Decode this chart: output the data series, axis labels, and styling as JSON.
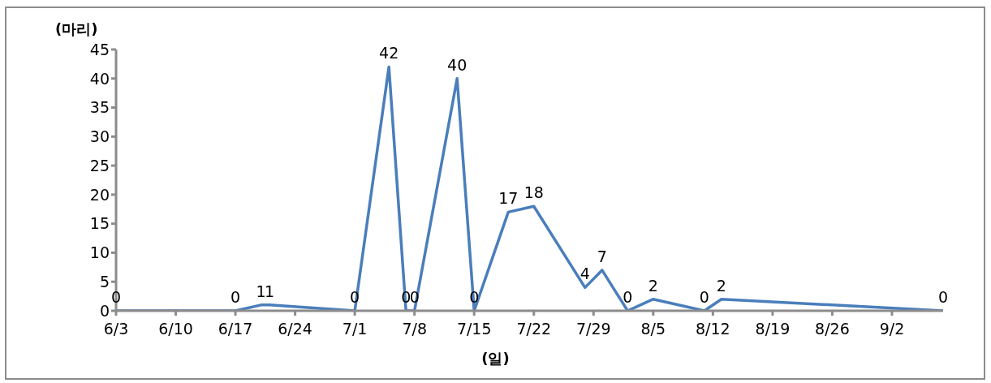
{
  "chart_data": {
    "type": "line",
    "ylabel": "(마리)",
    "xlabel": "(일)",
    "x": [
      "--06-03",
      "--06-17",
      "--06-20",
      "--06-21",
      "--07-01",
      "--07-05",
      "--07-07",
      "--07-08",
      "--07-13",
      "--07-15",
      "--07-19",
      "--07-22",
      "--07-28",
      "--07-30",
      "--08-02",
      "--08-05",
      "--08-11",
      "--08-13",
      "--09-08"
    ],
    "series": [
      {
        "color": "#4a7ebb",
        "values": [
          0,
          0,
          1,
          1,
          0,
          42,
          0,
          0,
          40,
          0,
          17,
          18,
          4,
          7,
          0,
          2,
          0,
          2,
          0
        ]
      }
    ],
    "xlim": [
      "--06-03",
      "--09-08"
    ],
    "xticks": [
      {
        "value": "--06-03",
        "label": "6/3"
      },
      {
        "value": "--06-10",
        "label": "6/10"
      },
      {
        "value": "--06-17",
        "label": "6/17"
      },
      {
        "value": "--06-24",
        "label": "6/24"
      },
      {
        "value": "--07-01",
        "label": "7/1"
      },
      {
        "value": "--07-08",
        "label": "7/8"
      },
      {
        "value": "--07-15",
        "label": "7/15"
      },
      {
        "value": "--07-22",
        "label": "7/22"
      },
      {
        "value": "--07-29",
        "label": "7/29"
      },
      {
        "value": "--08-05",
        "label": "8/5"
      },
      {
        "value": "--08-12",
        "label": "8/12"
      },
      {
        "value": "--08-19",
        "label": "8/19"
      },
      {
        "value": "--08-26",
        "label": "8/26"
      },
      {
        "value": "--09-02",
        "label": "9/2"
      }
    ],
    "ylim": [
      0,
      45
    ],
    "yticks": [
      0,
      5,
      10,
      15,
      20,
      25,
      30,
      35,
      40,
      45
    ],
    "grid": false,
    "legend": false,
    "marker": "none",
    "line_style": "solid",
    "data_labels": true
  }
}
